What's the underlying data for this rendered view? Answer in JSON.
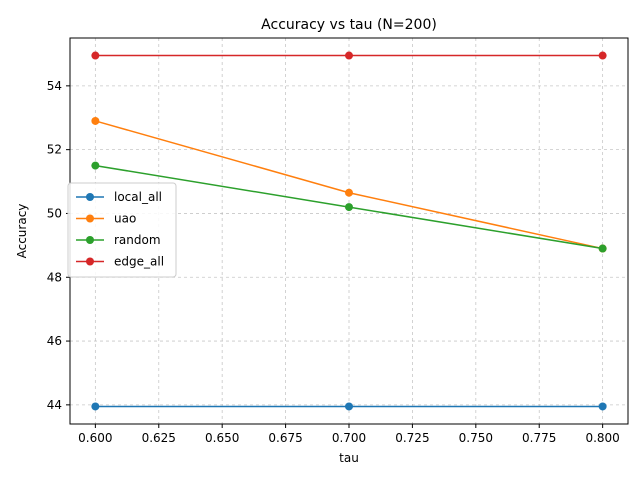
{
  "chart_data": {
    "type": "line",
    "title": "Accuracy vs tau (N=200)",
    "xlabel": "tau",
    "ylabel": "Accuracy",
    "x": [
      0.6,
      0.7,
      0.8
    ],
    "xlim": [
      0.59,
      0.81
    ],
    "ylim": [
      43.4,
      55.5
    ],
    "xticks": [
      "0.600",
      "0.625",
      "0.650",
      "0.675",
      "0.700",
      "0.725",
      "0.750",
      "0.775",
      "0.800"
    ],
    "yticks": [
      "44",
      "46",
      "48",
      "50",
      "52",
      "54"
    ],
    "grid": true,
    "legend_position": "center-left",
    "series": [
      {
        "name": "local_all",
        "color": "#1f77b4",
        "values": [
          43.95,
          43.95,
          43.95
        ]
      },
      {
        "name": "uao",
        "color": "#ff7f0e",
        "values": [
          52.9,
          50.65,
          48.9
        ]
      },
      {
        "name": "random",
        "color": "#2ca02c",
        "values": [
          51.5,
          50.2,
          48.9
        ]
      },
      {
        "name": "edge_all",
        "color": "#d62728",
        "values": [
          54.95,
          54.95,
          54.95
        ]
      }
    ]
  }
}
